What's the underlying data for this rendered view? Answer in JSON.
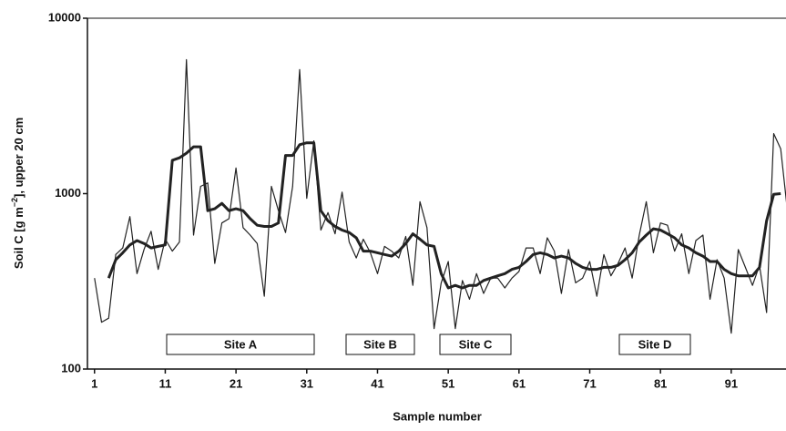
{
  "chart_data": {
    "type": "line",
    "xlabel": "Sample number",
    "ylabel": {
      "text": "Soil C [g m",
      "sup": "−2",
      "tail": "], upper 20 cm"
    },
    "log_y": true,
    "xlim": [
      0,
      99
    ],
    "ylim": [
      100,
      10000
    ],
    "xticks": [
      1,
      11,
      21,
      31,
      41,
      51,
      61,
      71,
      81,
      91
    ],
    "yticks": [
      100,
      1000,
      10000
    ],
    "annotations": [
      "Site A",
      "Site B",
      "Site C",
      "Site D"
    ],
    "x": [
      1,
      2,
      3,
      4,
      5,
      6,
      7,
      8,
      9,
      10,
      11,
      12,
      13,
      14,
      15,
      16,
      17,
      18,
      19,
      20,
      21,
      22,
      23,
      24,
      25,
      26,
      27,
      28,
      29,
      30,
      31,
      32,
      33,
      34,
      35,
      36,
      37,
      38,
      39,
      40,
      41,
      42,
      43,
      44,
      45,
      46,
      47,
      48,
      49,
      50,
      51,
      52,
      53,
      54,
      55,
      56,
      57,
      58,
      59,
      60,
      61,
      62,
      63,
      64,
      65,
      66,
      67,
      68,
      69,
      70,
      71,
      72,
      73,
      74,
      75,
      76,
      77,
      78,
      79,
      80,
      81,
      82,
      83,
      84,
      85,
      86,
      87,
      88,
      89,
      90,
      91,
      92,
      93,
      94,
      95,
      96,
      97,
      98,
      99
    ],
    "series": [
      {
        "color": "#222222",
        "width": 1.2,
        "values": [
          330,
          185,
          195,
          450,
          490,
          740,
          350,
          480,
          610,
          370,
          550,
          470,
          530,
          5800,
          580,
          1100,
          1150,
          400,
          680,
          720,
          1400,
          640,
          580,
          520,
          260,
          1100,
          800,
          600,
          1100,
          5100,
          940,
          2000,
          620,
          780,
          590,
          1020,
          530,
          430,
          550,
          460,
          350,
          500,
          470,
          430,
          570,
          300,
          900,
          640,
          170,
          310,
          410,
          170,
          320,
          250,
          350,
          270,
          330,
          330,
          290,
          330,
          360,
          490,
          490,
          350,
          560,
          470,
          270,
          480,
          310,
          330,
          410,
          260,
          450,
          340,
          400,
          490,
          330,
          580,
          900,
          460,
          680,
          660,
          470,
          590,
          350,
          540,
          580,
          250,
          420,
          330,
          160,
          480,
          380,
          300,
          390,
          210,
          2200,
          1800,
          760
        ]
      },
      {
        "color": "#222222",
        "width": 3,
        "values": [
          null,
          null,
          330,
          420,
          460,
          510,
          540,
          520,
          490,
          500,
          510,
          1550,
          1600,
          1700,
          1850,
          1850,
          800,
          820,
          880,
          800,
          820,
          800,
          720,
          660,
          650,
          650,
          680,
          1650,
          1650,
          1900,
          1950,
          1950,
          800,
          700,
          650,
          620,
          600,
          560,
          470,
          470,
          460,
          450,
          440,
          470,
          520,
          590,
          550,
          510,
          500,
          350,
          290,
          300,
          290,
          300,
          300,
          320,
          330,
          340,
          350,
          370,
          380,
          410,
          450,
          460,
          450,
          430,
          440,
          430,
          400,
          380,
          370,
          370,
          380,
          380,
          390,
          420,
          460,
          530,
          580,
          630,
          620,
          590,
          560,
          510,
          490,
          460,
          440,
          410,
          410,
          370,
          350,
          340,
          340,
          340,
          380,
          700,
          990,
          1000,
          null
        ]
      }
    ]
  }
}
